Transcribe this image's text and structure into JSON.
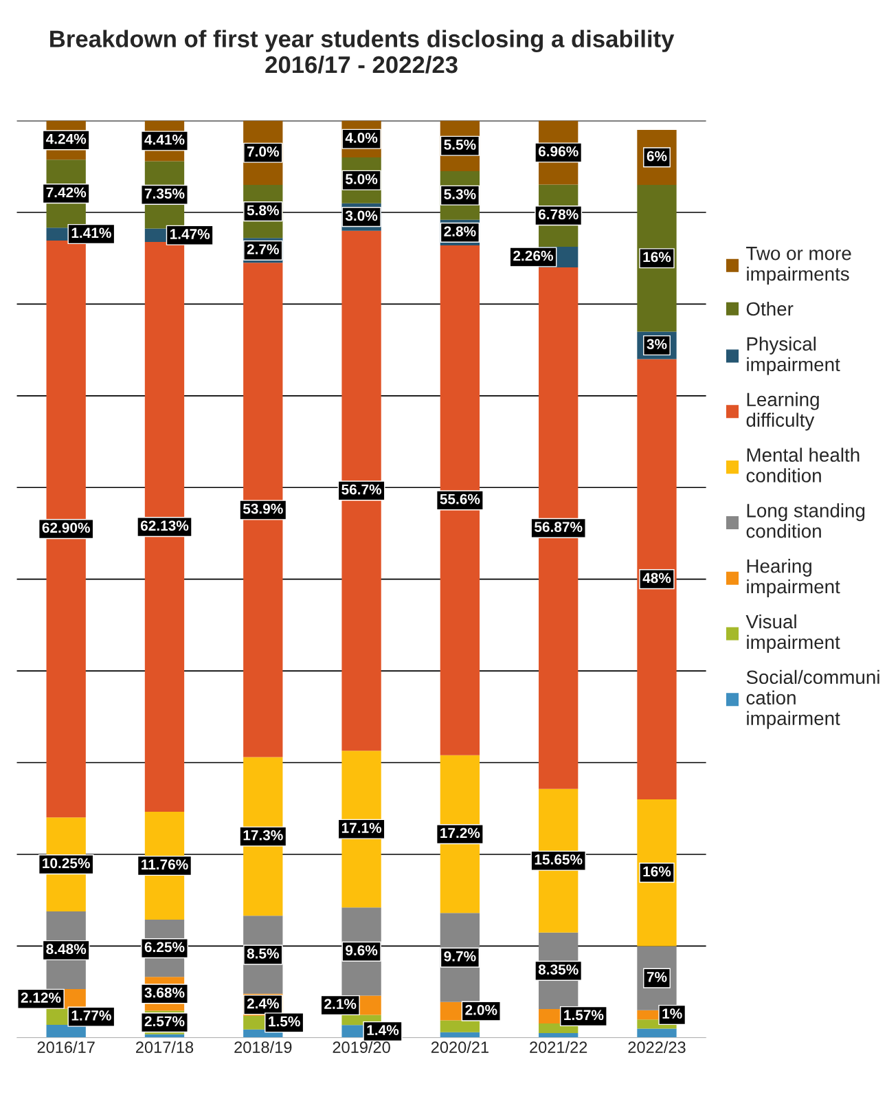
{
  "chart_data": {
    "type": "bar",
    "stacked": true,
    "title": "Breakdown of first year students disclosing a disability\n2016/17 - 2022/23",
    "categories": [
      "2016/17",
      "2017/18",
      "2018/19",
      "2019/20",
      "2020/21",
      "2021/22",
      "2022/23"
    ],
    "series": [
      {
        "name": "Social/communication impairment",
        "color": "#3e8fc0",
        "values": [
          1.41,
          0.38,
          0.9,
          1.4,
          0.6,
          0.52,
          1
        ],
        "value_labels": [
          null,
          null,
          null,
          "1.4%",
          null,
          null,
          null
        ]
      },
      {
        "name": "Visual impairment",
        "color": "#a5b92a",
        "values": [
          1.77,
          2.57,
          1.5,
          1.1,
          1.3,
          1.04,
          1
        ],
        "value_labels": [
          "1.77%",
          "2.57%",
          "1.5%",
          null,
          null,
          null,
          null
        ]
      },
      {
        "name": "Hearing impairment",
        "color": "#f58f12",
        "values": [
          2.12,
          3.68,
          2.4,
          2.1,
          2.0,
          1.57,
          1
        ],
        "value_labels": [
          "2.12%",
          "3.68%",
          "2.4%",
          "2.1%",
          "2.0%",
          "1.57%",
          "1%"
        ]
      },
      {
        "name": "Long standing condition",
        "color": "#878787",
        "values": [
          8.48,
          6.25,
          8.5,
          9.6,
          9.7,
          8.35,
          7
        ],
        "value_labels": [
          "8.48%",
          "6.25%",
          "8.5%",
          "9.6%",
          "9.7%",
          "8.35%",
          "7%"
        ]
      },
      {
        "name": "Mental health condition",
        "color": "#fdbf0c",
        "values": [
          10.25,
          11.76,
          17.3,
          17.1,
          17.2,
          15.65,
          16
        ],
        "value_labels": [
          "10.25%",
          "11.76%",
          "17.3%",
          "17.1%",
          "17.2%",
          "15.65%",
          "16%"
        ]
      },
      {
        "name": "Learning difficulty",
        "color": "#e05427",
        "values": [
          62.9,
          62.13,
          53.9,
          56.7,
          55.6,
          56.87,
          48
        ],
        "value_labels": [
          "62.90%",
          "62.13%",
          "53.9%",
          "56.7%",
          "55.6%",
          "56.87%",
          "48%"
        ]
      },
      {
        "name": "Physical impairment",
        "color": "#255672",
        "values": [
          1.41,
          1.47,
          2.7,
          3.0,
          2.8,
          2.26,
          3
        ],
        "value_labels": [
          "1.41%",
          "1.47%",
          "2.7%",
          "3.0%",
          "2.8%",
          "2.26%",
          "3%"
        ]
      },
      {
        "name": "Other",
        "color": "#65711b",
        "values": [
          7.42,
          7.35,
          5.8,
          5.0,
          5.3,
          6.78,
          16
        ],
        "value_labels": [
          "7.42%",
          "7.35%",
          "5.8%",
          "5.0%",
          "5.3%",
          "6.78%",
          "16%"
        ]
      },
      {
        "name": "Two or more impairments",
        "color": "#995a00",
        "values": [
          4.24,
          4.41,
          7.0,
          4.0,
          5.5,
          6.96,
          6
        ],
        "value_labels": [
          "4.24%",
          "4.41%",
          "7.0%",
          "4.0%",
          "5.5%",
          "6.96%",
          "6%"
        ]
      }
    ],
    "ylim": [
      0,
      100
    ],
    "yticks": [
      {
        "value": 0,
        "label": null
      },
      {
        "value": 10,
        "label": null
      },
      {
        "value": 20,
        "label": null
      },
      {
        "value": 30,
        "label": null
      },
      {
        "value": 40,
        "label": null
      },
      {
        "value": 50,
        "label": null
      },
      {
        "value": 60,
        "label": null
      },
      {
        "value": 70,
        "label": null
      },
      {
        "value": 80,
        "label": null
      },
      {
        "value": 90,
        "label": null
      },
      {
        "value": 100,
        "label": null
      }
    ],
    "tick_labels": "x",
    "grid": "y",
    "legend": "right"
  }
}
